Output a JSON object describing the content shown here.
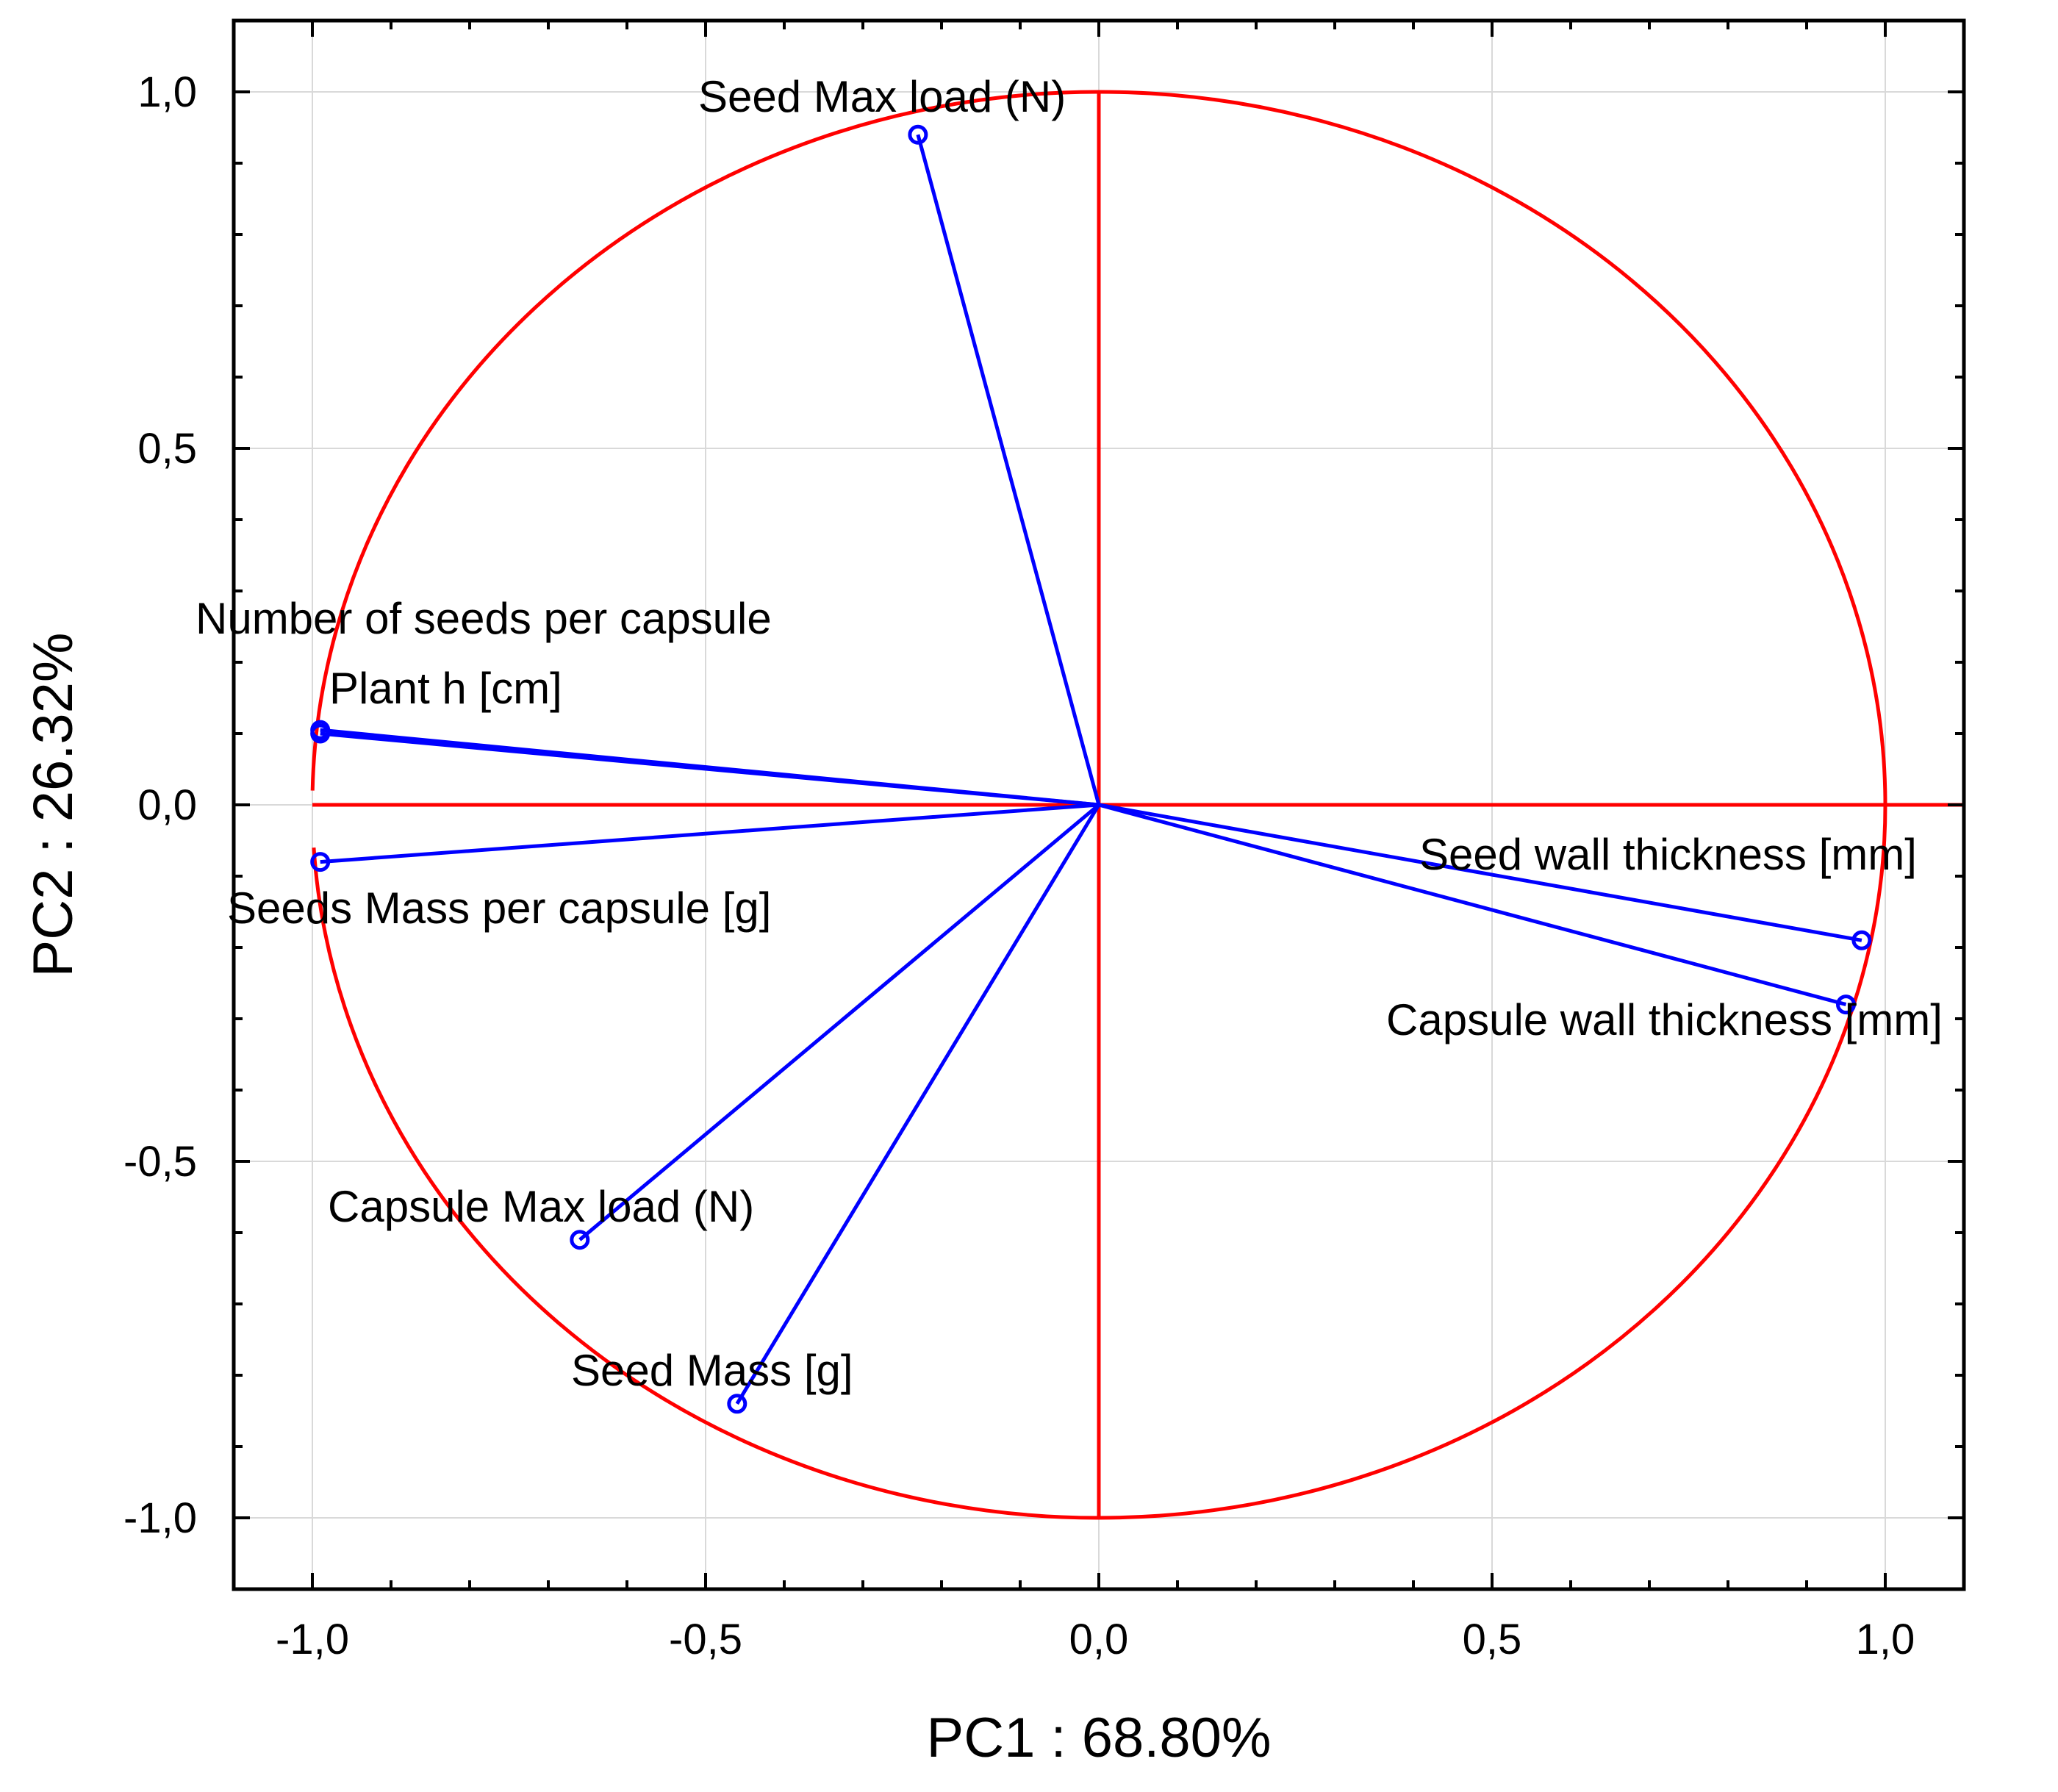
{
  "chart_data": {
    "type": "scatter",
    "subtype": "pca-correlation-circle",
    "title": "",
    "xlabel": "PC1 : 68.80%",
    "ylabel": "PC2 : 26.32%",
    "xlim": [
      -1.1,
      1.1
    ],
    "ylim": [
      -1.1,
      1.1
    ],
    "x_ticks": [
      -1.0,
      -0.5,
      0.0,
      0.5,
      1.0
    ],
    "y_ticks": [
      -1.0,
      -0.5,
      0.0,
      0.5,
      1.0
    ],
    "x_tick_labels": [
      "-1,0",
      "-0,5",
      "0,0",
      "0,5",
      "1,0"
    ],
    "y_tick_labels": [
      "-1,0",
      "-0,5",
      "0,0",
      "0,5",
      "1,0"
    ],
    "grid": true,
    "unit_circle_radius": 1.0,
    "colors": {
      "circle": "#ff0000",
      "vectors": "#0000ff",
      "grid": "#d9d9d9",
      "frame": "#000000"
    },
    "points": [
      {
        "name": "Seed Max load (N)",
        "x": -0.23,
        "y": 0.94
      },
      {
        "name": "Number of seeds per capsule",
        "x": -0.99,
        "y": 0.1
      },
      {
        "name": "Plant h [cm]",
        "x": -0.99,
        "y": 0.105
      },
      {
        "name": "Seeds Mass per capsule [g]",
        "x": -0.99,
        "y": -0.08
      },
      {
        "name": "Seed wall thickness [mm]",
        "x": 0.97,
        "y": -0.19
      },
      {
        "name": "Capsule wall thickness [mm]",
        "x": 0.95,
        "y": -0.28
      },
      {
        "name": "Capsule Max load (N)",
        "x": -0.66,
        "y": -0.61
      },
      {
        "name": "Seed Mass [g]",
        "x": -0.46,
        "y": -0.84
      }
    ]
  }
}
